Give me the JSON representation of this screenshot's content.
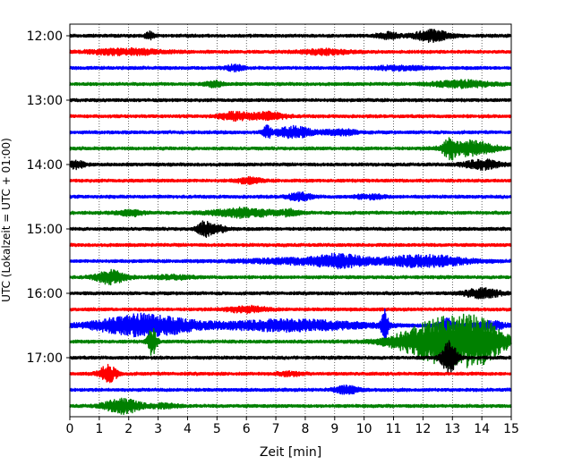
{
  "chart_data": {
    "type": "line",
    "subtype": "helicorder",
    "xlabel": "Zeit  [min]",
    "ylabel": "UTC (Lokalzeit = UTC + 01:00)",
    "xlim": [
      0,
      15
    ],
    "x_ticks": [
      0,
      1,
      2,
      3,
      4,
      5,
      6,
      7,
      8,
      9,
      10,
      11,
      12,
      13,
      14,
      15
    ],
    "y_tick_labels": [
      "12:00",
      "13:00",
      "14:00",
      "15:00",
      "16:00",
      "17:00"
    ],
    "grid": "vertical dotted",
    "trace_colors": [
      "#000000",
      "#ff0000",
      "#0000ff",
      "#008000"
    ],
    "traces": [
      {
        "start": "12:00",
        "color": "#000000",
        "events": [
          {
            "t": 2.7,
            "amp": 4,
            "dur": 0.15
          },
          {
            "t": 10.8,
            "amp": 3,
            "dur": 0.4
          },
          {
            "t": 12.3,
            "amp": 6,
            "dur": 0.6
          }
        ]
      },
      {
        "start": "12:15",
        "color": "#ff0000",
        "events": [
          {
            "t": 1.9,
            "amp": 3,
            "dur": 1.2
          },
          {
            "t": 8.7,
            "amp": 2.5,
            "dur": 0.8
          }
        ]
      },
      {
        "start": "12:30",
        "color": "#0000ff",
        "events": [
          {
            "t": 5.6,
            "amp": 3,
            "dur": 0.3
          },
          {
            "t": 11.2,
            "amp": 2,
            "dur": 0.8
          }
        ]
      },
      {
        "start": "12:45",
        "color": "#008000",
        "events": [
          {
            "t": 4.9,
            "amp": 3,
            "dur": 0.3
          },
          {
            "t": 13.3,
            "amp": 3.5,
            "dur": 1.0
          }
        ]
      },
      {
        "start": "13:00",
        "color": "#000000",
        "events": []
      },
      {
        "start": "13:15",
        "color": "#ff0000",
        "events": [
          {
            "t": 5.6,
            "amp": 4,
            "dur": 0.5
          },
          {
            "t": 6.7,
            "amp": 4,
            "dur": 0.6
          }
        ]
      },
      {
        "start": "13:30",
        "color": "#0000ff",
        "events": [
          {
            "t": 6.7,
            "amp": 6,
            "dur": 0.15
          },
          {
            "t": 7.6,
            "amp": 6,
            "dur": 0.6
          },
          {
            "t": 9.2,
            "amp": 3,
            "dur": 0.6
          }
        ]
      },
      {
        "start": "13:45",
        "color": "#008000",
        "events": [
          {
            "t": 12.9,
            "amp": 9,
            "dur": 0.2
          },
          {
            "t": 13.6,
            "amp": 8,
            "dur": 0.8
          }
        ]
      },
      {
        "start": "14:00",
        "color": "#000000",
        "events": [
          {
            "t": 0.2,
            "amp": 4,
            "dur": 0.3
          },
          {
            "t": 14.0,
            "amp": 5,
            "dur": 0.6
          }
        ]
      },
      {
        "start": "14:15",
        "color": "#ff0000",
        "events": [
          {
            "t": 6.1,
            "amp": 3,
            "dur": 0.4
          }
        ]
      },
      {
        "start": "14:30",
        "color": "#0000ff",
        "events": [
          {
            "t": 7.8,
            "amp": 4,
            "dur": 0.4
          },
          {
            "t": 10.2,
            "amp": 2,
            "dur": 0.5
          }
        ]
      },
      {
        "start": "14:45",
        "color": "#008000",
        "events": [
          {
            "t": 2.1,
            "amp": 3,
            "dur": 0.4
          },
          {
            "t": 5.9,
            "amp": 5,
            "dur": 1.0
          },
          {
            "t": 7.5,
            "amp": 3,
            "dur": 0.3
          }
        ]
      },
      {
        "start": "15:00",
        "color": "#000000",
        "events": [
          {
            "t": 4.6,
            "amp": 8,
            "dur": 0.25
          },
          {
            "t": 5.1,
            "amp": 3,
            "dur": 0.3
          }
        ]
      },
      {
        "start": "15:15",
        "color": "#ff0000",
        "events": []
      },
      {
        "start": "15:30",
        "color": "#0000ff",
        "events": [
          {
            "t": 8.0,
            "amp": 3,
            "dur": 2.0
          },
          {
            "t": 9.2,
            "amp": 5,
            "dur": 0.8
          },
          {
            "t": 12.0,
            "amp": 6,
            "dur": 1.5
          }
        ]
      },
      {
        "start": "15:45",
        "color": "#008000",
        "events": [
          {
            "t": 1.4,
            "amp": 7,
            "dur": 0.5
          },
          {
            "t": 3.5,
            "amp": 2,
            "dur": 0.6
          }
        ]
      },
      {
        "start": "16:00",
        "color": "#000000",
        "events": [
          {
            "t": 14.0,
            "amp": 5,
            "dur": 0.6
          }
        ]
      },
      {
        "start": "16:15",
        "color": "#ff0000",
        "events": [
          {
            "t": 6.0,
            "amp": 3,
            "dur": 0.7
          }
        ]
      },
      {
        "start": "16:30",
        "color": "#0000ff",
        "events": [
          {
            "t": 2.5,
            "amp": 12,
            "dur": 1.6
          },
          {
            "t": 7.5,
            "amp": 6,
            "dur": 2.5
          },
          {
            "t": 10.7,
            "amp": 16,
            "dur": 0.12
          },
          {
            "t": 12.8,
            "amp": 7,
            "dur": 0.3
          },
          {
            "t": 14.3,
            "amp": 4,
            "dur": 0.6
          }
        ]
      },
      {
        "start": "16:45",
        "color": "#008000",
        "events": [
          {
            "t": 2.8,
            "amp": 15,
            "dur": 0.15
          },
          {
            "t": 12.8,
            "amp": 26,
            "dur": 1.5
          },
          {
            "t": 14.0,
            "amp": 12,
            "dur": 0.8
          }
        ]
      },
      {
        "start": "17:00",
        "color": "#000000",
        "events": [
          {
            "t": 12.9,
            "amp": 20,
            "dur": 0.25
          }
        ]
      },
      {
        "start": "17:15",
        "color": "#ff0000",
        "events": [
          {
            "t": 1.3,
            "amp": 9,
            "dur": 0.3
          },
          {
            "t": 7.5,
            "amp": 2,
            "dur": 0.4
          }
        ]
      },
      {
        "start": "17:30",
        "color": "#0000ff",
        "events": [
          {
            "t": 9.4,
            "amp": 4,
            "dur": 0.4
          }
        ]
      },
      {
        "start": "17:45",
        "color": "#008000",
        "events": [
          {
            "t": 1.8,
            "amp": 8,
            "dur": 0.6
          },
          {
            "t": 3.2,
            "amp": 2,
            "dur": 0.5
          }
        ]
      }
    ]
  }
}
